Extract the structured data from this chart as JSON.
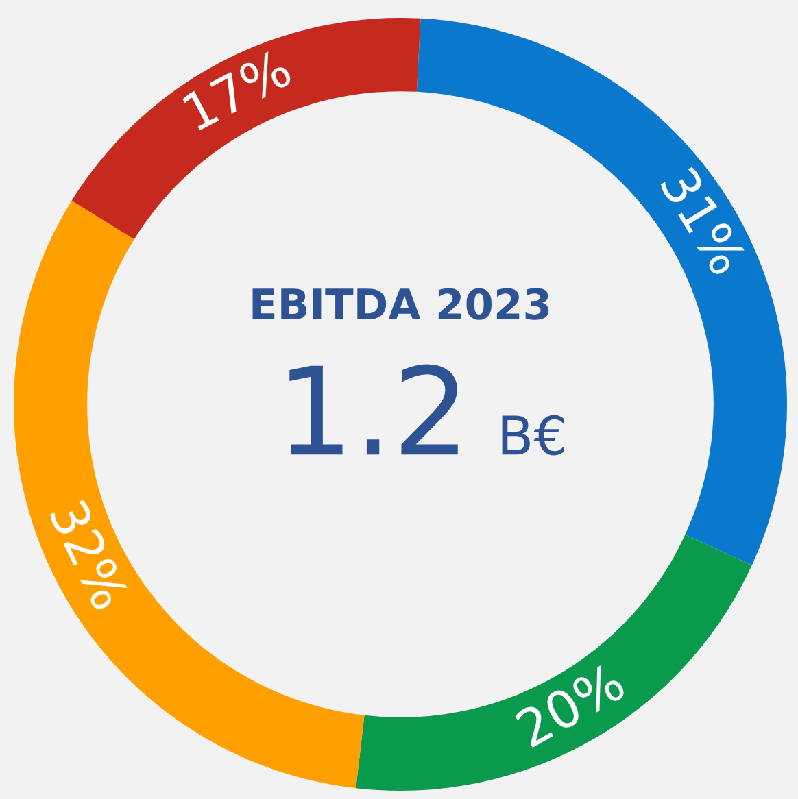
{
  "chart_data": {
    "type": "donut",
    "title": "EBITDA 2023",
    "annotations": [
      "1.2",
      "B€"
    ],
    "categories": [
      null,
      null,
      null,
      null
    ],
    "values": [
      31,
      20,
      32,
      17
    ],
    "colors": [
      "#0a78cc",
      "#0a9a4e",
      "#ffa000",
      "#c62a1e"
    ],
    "value_labels": [
      "31%",
      "20%",
      "32%",
      "17%"
    ]
  }
}
